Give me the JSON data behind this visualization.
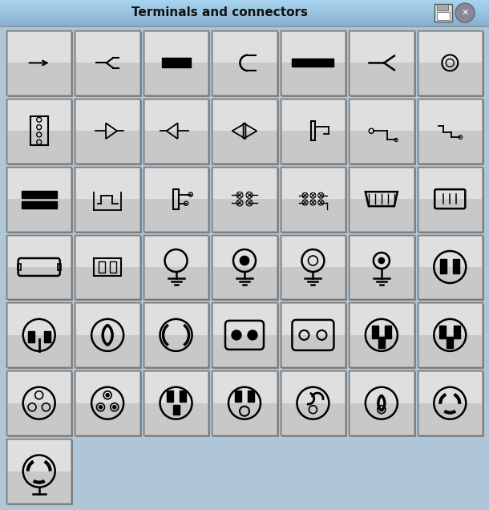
{
  "title": "Terminals and connectors",
  "bg_color": "#aec6d8",
  "title_bg_top": "#a8d4f0",
  "title_bg_bot": "#8ab0cc",
  "btn_light": "#f5f5f5",
  "btn_mid": "#e0e0e0",
  "btn_dark": "#aaaaaa",
  "btn_edge": "#888888",
  "rows": 7,
  "cols": 7,
  "total": 43,
  "fig_w": 6.1,
  "fig_h": 6.36,
  "dpi": 100
}
